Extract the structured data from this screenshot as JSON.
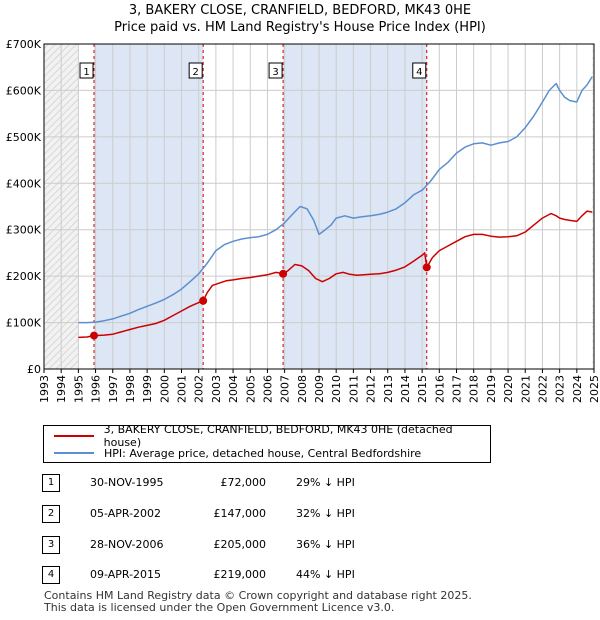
{
  "title_line1": "3, BAKERY CLOSE, CRANFIELD, BEDFORD, MK43 0HE",
  "title_line2": "Price paid vs. HM Land Registry's House Price Index (HPI)",
  "colors": {
    "price": "#cc0000",
    "hpi": "#5b8fd0",
    "shade": "#dde6f5",
    "grid": "#cccccc"
  },
  "legend": {
    "price_label": "3, BAKERY CLOSE, CRANFIELD, BEDFORD, MK43 0HE (detached house)",
    "hpi_label": "HPI: Average price, detached house, Central Bedfordshire"
  },
  "sales": [
    {
      "num": "1",
      "date": "30-NOV-1995",
      "price": "£72,000",
      "hpi": "29% ↓ HPI"
    },
    {
      "num": "2",
      "date": "05-APR-2002",
      "price": "£147,000",
      "hpi": "32% ↓ HPI"
    },
    {
      "num": "3",
      "date": "28-NOV-2006",
      "price": "£205,000",
      "hpi": "36% ↓ HPI"
    },
    {
      "num": "4",
      "date": "09-APR-2015",
      "price": "£219,000",
      "hpi": "44% ↓ HPI"
    }
  ],
  "footer_line1": "Contains HM Land Registry data © Crown copyright and database right 2025.",
  "footer_line2": "This data is licensed under the Open Government Licence v3.0.",
  "chart_data": {
    "type": "line",
    "title": "3, BAKERY CLOSE, CRANFIELD, BEDFORD, MK43 0HE",
    "subtitle": "Price paid vs. HM Land Registry's House Price Index (HPI)",
    "xlabel": "",
    "ylabel": "",
    "xlim": [
      1993,
      2025
    ],
    "ylim": [
      0,
      700000
    ],
    "grid": true,
    "legend_position": "below",
    "x_ticks": [
      1993,
      1994,
      1995,
      1996,
      1997,
      1998,
      1999,
      2000,
      2001,
      2002,
      2003,
      2004,
      2005,
      2006,
      2007,
      2008,
      2009,
      2010,
      2011,
      2012,
      2013,
      2014,
      2015,
      2016,
      2017,
      2018,
      2019,
      2020,
      2021,
      2022,
      2023,
      2024,
      2025
    ],
    "y_ticks": [
      {
        "value": 0,
        "label": "£0"
      },
      {
        "value": 100000,
        "label": "£100K"
      },
      {
        "value": 200000,
        "label": "£200K"
      },
      {
        "value": 300000,
        "label": "£300K"
      },
      {
        "value": 400000,
        "label": "£400K"
      },
      {
        "value": 500000,
        "label": "£500K"
      },
      {
        "value": 600000,
        "label": "£600K"
      },
      {
        "value": 700000,
        "label": "£700K"
      }
    ],
    "shaded_periods": [
      [
        1995.91,
        2002.26
      ],
      [
        2006.91,
        2015.27
      ]
    ],
    "sale_markers": [
      {
        "label": "1",
        "x": 1995.91,
        "y": 72000
      },
      {
        "label": "2",
        "x": 2002.26,
        "y": 147000
      },
      {
        "label": "3",
        "x": 2006.91,
        "y": 205000
      },
      {
        "label": "4",
        "x": 2015.27,
        "y": 219000
      }
    ],
    "series": [
      {
        "name": "3, BAKERY CLOSE, CRANFIELD, BEDFORD, MK43 0HE (detached house)",
        "x": [
          1995.0,
          1995.5,
          1995.91,
          1996.5,
          1997.0,
          1997.5,
          1998.0,
          1998.5,
          1999.0,
          1999.5,
          2000.0,
          2000.5,
          2001.0,
          2001.5,
          2002.0,
          2002.26,
          2002.5,
          2002.8,
          2003.2,
          2003.6,
          2004.0,
          2004.5,
          2005.0,
          2005.5,
          2006.0,
          2006.5,
          2006.91,
          2007.2,
          2007.6,
          2008.0,
          2008.4,
          2008.8,
          2009.2,
          2009.6,
          2010.0,
          2010.4,
          2010.8,
          2011.2,
          2011.6,
          2012.0,
          2012.5,
          2013.0,
          2013.5,
          2014.0,
          2014.5,
          2015.0,
          2015.15,
          2015.27,
          2015.6,
          2016.0,
          2016.5,
          2017.0,
          2017.5,
          2018.0,
          2018.5,
          2019.0,
          2019.5,
          2020.0,
          2020.5,
          2021.0,
          2021.5,
          2022.0,
          2022.5,
          2022.8,
          2023.0,
          2023.3,
          2023.6,
          2024.0,
          2024.3,
          2024.6,
          2024.9
        ],
        "values": [
          68000,
          69000,
          72000,
          73000,
          75000,
          80000,
          85000,
          90000,
          94000,
          98000,
          105000,
          115000,
          125000,
          135000,
          143000,
          147000,
          165000,
          180000,
          185000,
          190000,
          192000,
          195000,
          197000,
          200000,
          203000,
          208000,
          205000,
          212000,
          225000,
          222000,
          212000,
          195000,
          188000,
          195000,
          205000,
          208000,
          204000,
          202000,
          203000,
          204000,
          205000,
          208000,
          213000,
          220000,
          232000,
          245000,
          250000,
          219000,
          240000,
          255000,
          265000,
          275000,
          285000,
          290000,
          290000,
          286000,
          284000,
          285000,
          287000,
          295000,
          310000,
          325000,
          335000,
          330000,
          325000,
          322000,
          320000,
          318000,
          330000,
          340000,
          338000
        ]
      },
      {
        "name": "HPI: Average price, detached house, Central Bedfordshire",
        "x": [
          1995.0,
          1995.5,
          1996.0,
          1996.5,
          1997.0,
          1997.5,
          1998.0,
          1998.5,
          1999.0,
          1999.5,
          2000.0,
          2000.5,
          2001.0,
          2001.5,
          2002.0,
          2002.5,
          2003.0,
          2003.5,
          2004.0,
          2004.5,
          2005.0,
          2005.5,
          2006.0,
          2006.5,
          2007.0,
          2007.5,
          2007.9,
          2008.3,
          2008.7,
          2009.0,
          2009.3,
          2009.7,
          2010.0,
          2010.5,
          2011.0,
          2011.5,
          2012.0,
          2012.5,
          2013.0,
          2013.5,
          2014.0,
          2014.5,
          2015.0,
          2015.5,
          2016.0,
          2016.5,
          2017.0,
          2017.5,
          2018.0,
          2018.5,
          2019.0,
          2019.5,
          2020.0,
          2020.5,
          2021.0,
          2021.5,
          2022.0,
          2022.4,
          2022.8,
          2023.0,
          2023.3,
          2023.6,
          2024.0,
          2024.3,
          2024.6,
          2024.9
        ],
        "values": [
          100000,
          100000,
          101000,
          104000,
          108000,
          114000,
          120000,
          128000,
          135000,
          142000,
          150000,
          160000,
          172000,
          188000,
          205000,
          228000,
          255000,
          268000,
          275000,
          280000,
          283000,
          285000,
          290000,
          300000,
          315000,
          335000,
          350000,
          345000,
          320000,
          290000,
          298000,
          310000,
          325000,
          330000,
          325000,
          328000,
          330000,
          333000,
          338000,
          345000,
          358000,
          375000,
          385000,
          405000,
          430000,
          445000,
          465000,
          478000,
          485000,
          487000,
          482000,
          487000,
          490000,
          500000,
          520000,
          545000,
          575000,
          600000,
          615000,
          600000,
          585000,
          578000,
          575000,
          600000,
          612000,
          630000
        ]
      }
    ]
  }
}
